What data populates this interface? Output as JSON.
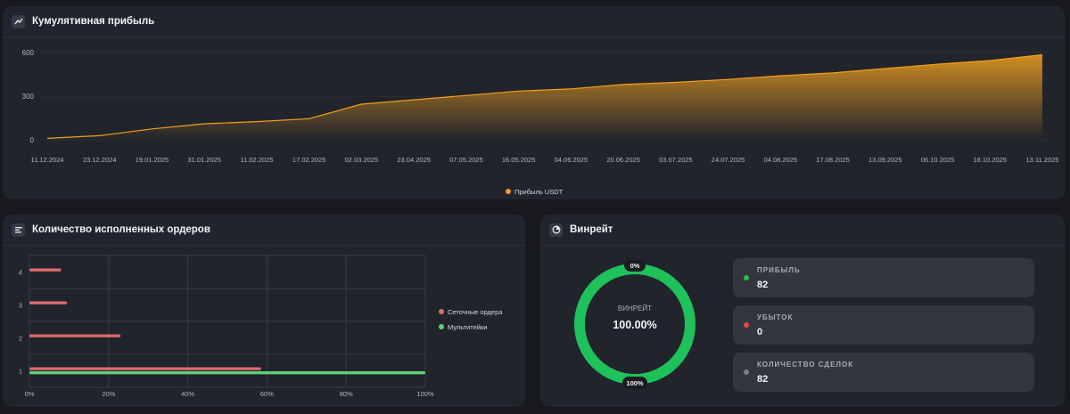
{
  "profit_panel": {
    "title": "Кумулятивная прибыль",
    "icon": "trend-line-icon"
  },
  "orders_panel": {
    "title": "Количество исполненных ордеров",
    "icon": "list-icon"
  },
  "winrate_panel": {
    "title": "Винрейт",
    "icon": "pie-icon",
    "center_label": "ВИНРЕЙТ",
    "center_value": "100.00%",
    "top_tag": "0%",
    "bottom_tag": "100%",
    "ring_color": "#1fc25a",
    "stats": [
      {
        "label": "ПРИБЫЛЬ",
        "value": "82",
        "color": "#27c24c"
      },
      {
        "label": "УБЫТОК",
        "value": "0",
        "color": "#e5484d"
      },
      {
        "label": "КОЛИЧЕСТВО СДЕЛОК",
        "value": "82",
        "color": "#7c7f8a"
      }
    ]
  },
  "chart_data": [
    {
      "type": "area",
      "title": "Кумулятивная прибыль",
      "ylim": [
        0,
        600
      ],
      "yticks": [
        0,
        300,
        600
      ],
      "x": [
        "11.12.2024",
        "23.12.2024",
        "19.01.2025",
        "31.01.2025",
        "11.02.2025",
        "17.02.2025",
        "02.03.2025",
        "23.04.2025",
        "07.05.2025",
        "16.05.2025",
        "04.06.2025",
        "20.06.2025",
        "03.07.2025",
        "24.07.2025",
        "04.08.2025",
        "17.08.2025",
        "13.09.2025",
        "06.10.2025",
        "18.10.2025",
        "13.11.2025"
      ],
      "values": [
        10,
        28,
        75,
        110,
        125,
        145,
        245,
        275,
        305,
        335,
        350,
        380,
        395,
        415,
        440,
        460,
        490,
        520,
        545,
        585
      ],
      "series_name": "Прибыль USDT",
      "color": "#f0a01e",
      "legend_position": "bottom"
    },
    {
      "type": "bar",
      "orientation": "horizontal",
      "title": "Количество исполненных ордеров",
      "categories": [
        "4",
        "3",
        "2",
        "1"
      ],
      "xticks": [
        "0%",
        "20%",
        "40%",
        "60%",
        "80%",
        "100%"
      ],
      "xlim": [
        0,
        100
      ],
      "series": [
        {
          "name": "Сеточные ордера",
          "color": "#d96c6c",
          "values": [
            8,
            9.5,
            23,
            58.5
          ]
        },
        {
          "name": "Мультитейки",
          "color": "#5fd07a",
          "values": [
            0,
            0,
            0,
            100
          ]
        }
      ],
      "legend_position": "right"
    }
  ]
}
